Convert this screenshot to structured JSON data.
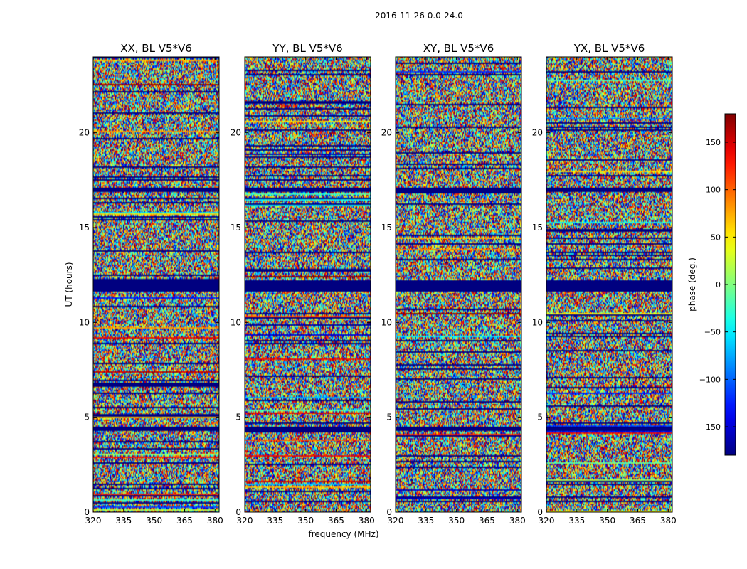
{
  "figure": {
    "suptitle": "2016-11-26 0.0-24.0",
    "xlabel": "frequency (MHz)",
    "ylabel": "UT (hours)"
  },
  "colorbar": {
    "label": "phase (deg.)",
    "range": [
      -180,
      180
    ],
    "ticks": [
      -150,
      -100,
      -50,
      0,
      50,
      100,
      150
    ],
    "tick_labels": [
      "−150",
      "−100",
      "−50",
      "0",
      "50",
      "100",
      "150"
    ],
    "colormap": "jet"
  },
  "chart_data": [
    {
      "type": "heatmap",
      "title": "XX, BL V5*V6",
      "xlim": [
        320,
        382
      ],
      "ylim": [
        0,
        24
      ],
      "xticks": [
        320,
        335,
        350,
        365,
        380
      ],
      "yticks": [
        0,
        5,
        10,
        15,
        20
      ],
      "value": "phase (deg.)",
      "vrange": [
        -180,
        180
      ],
      "flagged_bands_hours": [
        [
          11.6,
          12.2
        ],
        [
          16.9,
          17.1
        ],
        [
          6.6,
          6.8
        ],
        [
          4.3,
          4.5
        ]
      ]
    },
    {
      "type": "heatmap",
      "title": "YY, BL V5*V6",
      "xlim": [
        320,
        382
      ],
      "ylim": [
        0,
        24
      ],
      "xticks": [
        320,
        335,
        350,
        365,
        380
      ],
      "yticks": [
        0,
        5,
        10,
        15,
        20
      ],
      "value": "phase (deg.)",
      "vrange": [
        -180,
        180
      ],
      "flagged_bands_hours": [
        [
          11.6,
          12.2
        ],
        [
          16.9,
          17.1
        ],
        [
          4.3,
          4.5
        ]
      ]
    },
    {
      "type": "heatmap",
      "title": "XY, BL V5*V6",
      "xlim": [
        320,
        382
      ],
      "ylim": [
        0,
        24
      ],
      "xticks": [
        320,
        335,
        350,
        365,
        380
      ],
      "yticks": [
        0,
        5,
        10,
        15,
        20
      ],
      "value": "phase (deg.)",
      "vrange": [
        -180,
        180
      ],
      "flagged_bands_hours": [
        [
          11.6,
          12.2
        ],
        [
          16.9,
          17.1
        ],
        [
          4.3,
          4.5
        ]
      ]
    },
    {
      "type": "heatmap",
      "title": "YX, BL V5*V6",
      "xlim": [
        320,
        382
      ],
      "ylim": [
        0,
        24
      ],
      "xticks": [
        320,
        335,
        350,
        365,
        380
      ],
      "yticks": [
        0,
        5,
        10,
        15,
        20
      ],
      "value": "phase (deg.)",
      "vrange": [
        -180,
        180
      ],
      "flagged_bands_hours": [
        [
          11.6,
          12.2
        ],
        [
          16.9,
          17.1
        ],
        [
          4.3,
          4.5
        ]
      ]
    }
  ]
}
